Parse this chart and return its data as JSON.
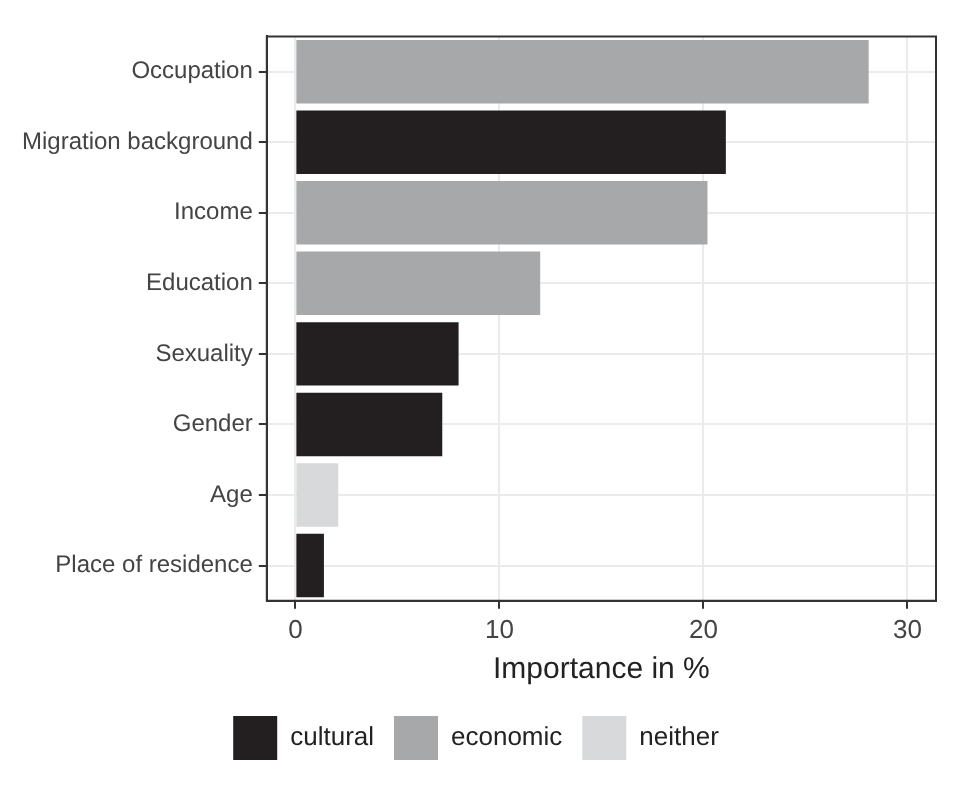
{
  "chart_data": {
    "type": "bar",
    "orientation": "horizontal",
    "stacked": true,
    "xlabel": "Importance in %",
    "categories": [
      "Occupation",
      "Migration background",
      "Income",
      "Education",
      "Sexuality",
      "Gender",
      "Age",
      "Place of residence"
    ],
    "series": [
      {
        "name": "cultural",
        "color": "#231f20",
        "values": [
          null,
          21.1,
          null,
          null,
          8.0,
          7.2,
          null,
          1.4
        ]
      },
      {
        "name": "economic",
        "color": "#a7a8aa",
        "values": [
          28.1,
          null,
          20.2,
          12.0,
          null,
          null,
          null,
          null
        ]
      },
      {
        "name": "neither",
        "color": "#d8d9da",
        "values": [
          null,
          null,
          null,
          null,
          null,
          null,
          2.1,
          null
        ]
      }
    ],
    "xlim": [
      -1.4,
      31.4
    ],
    "xticks": [
      0,
      10,
      20,
      30
    ],
    "grid": true,
    "legend": "bottom"
  }
}
